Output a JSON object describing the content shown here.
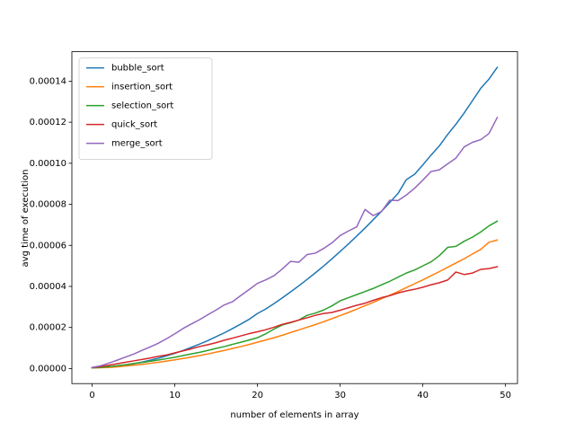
{
  "chart_data": {
    "type": "line",
    "xlabel": "number of elements in array",
    "ylabel": "avg time of execution",
    "x": [
      0,
      1,
      2,
      3,
      4,
      5,
      6,
      7,
      8,
      9,
      10,
      11,
      12,
      13,
      14,
      15,
      16,
      17,
      18,
      19,
      20,
      21,
      22,
      23,
      24,
      25,
      26,
      27,
      28,
      29,
      30,
      31,
      32,
      33,
      34,
      35,
      36,
      37,
      38,
      39,
      40,
      41,
      42,
      43,
      44,
      45,
      46,
      47,
      48,
      49
    ],
    "xlim": [
      -2.45,
      51.45
    ],
    "xticks": [
      0,
      10,
      20,
      30,
      40,
      50
    ],
    "ylim": [
      -7.35e-06,
      0.00015435
    ],
    "yticks": [
      {
        "value": 0,
        "label": "0.00000"
      },
      {
        "value": 2e-05,
        "label": "0.00002"
      },
      {
        "value": 4e-05,
        "label": "0.00004"
      },
      {
        "value": 6e-05,
        "label": "0.00006"
      },
      {
        "value": 8e-05,
        "label": "0.00008"
      },
      {
        "value": 0.0001,
        "label": "0.00010"
      },
      {
        "value": 0.00012,
        "label": "0.00012"
      },
      {
        "value": 0.00014,
        "label": "0.00014"
      }
    ],
    "grid": false,
    "legend": "upper left",
    "series": [
      {
        "name": "bubble_sort",
        "color": "#1f77b4",
        "values": [
          5e-07,
          6e-07,
          9e-07,
          1e-06,
          1.6e-06,
          2.3e-06,
          3.1e-06,
          4e-06,
          5e-06,
          6.2e-06,
          7.4e-06,
          8.8e-06,
          1.03e-05,
          1.19e-05,
          1.36e-05,
          1.55e-05,
          1.74e-05,
          1.95e-05,
          2.17e-05,
          2.4e-05,
          2.68e-05,
          2.9e-05,
          3.16e-05,
          3.44e-05,
          3.73e-05,
          4.03e-05,
          4.34e-05,
          4.66e-05,
          4.99e-05,
          5.34e-05,
          5.7e-05,
          6.07e-05,
          6.45e-05,
          6.84e-05,
          7.25e-05,
          7.66e-05,
          8.09e-05,
          8.53e-05,
          9.2e-05,
          9.46e-05,
          9.92e-05,
          0.000104,
          0.0001085,
          0.000114,
          0.000119,
          0.0001245,
          0.0001305,
          0.0001365,
          0.000141,
          0.0001467
        ]
      },
      {
        "name": "insertion_sort",
        "color": "#ff7f0e",
        "values": [
          3e-07,
          4e-07,
          5e-07,
          8e-07,
          1.2e-06,
          1.6e-06,
          2e-06,
          2.5e-06,
          3e-06,
          3.6e-06,
          4.2e-06,
          4.9e-06,
          5.6e-06,
          6.3e-06,
          7.1e-06,
          8e-06,
          8.8e-06,
          9.8e-06,
          1.07e-05,
          1.17e-05,
          1.28e-05,
          1.39e-05,
          1.5e-05,
          1.62e-05,
          1.75e-05,
          1.88e-05,
          2.01e-05,
          2.14e-05,
          2.28e-05,
          2.43e-05,
          2.58e-05,
          2.73e-05,
          2.89e-05,
          3.06e-05,
          3.22e-05,
          3.4e-05,
          3.57e-05,
          3.75e-05,
          3.94e-05,
          4.13e-05,
          4.32e-05,
          4.52e-05,
          4.72e-05,
          4.93e-05,
          5.14e-05,
          5.35e-05,
          5.58e-05,
          5.8e-05,
          6.15e-05,
          6.26e-05
        ]
      },
      {
        "name": "selection_sort",
        "color": "#2ca02c",
        "values": [
          3e-07,
          5e-07,
          9e-07,
          1.3e-06,
          1.8e-06,
          2.4e-06,
          2.9e-06,
          3.5e-06,
          4.1e-06,
          4.8e-06,
          5.5e-06,
          6.3e-06,
          7.1e-06,
          7.9e-06,
          8.8e-06,
          9.8e-06,
          1.07e-05,
          1.18e-05,
          1.28e-05,
          1.39e-05,
          1.5e-05,
          1.69e-05,
          1.92e-05,
          2.12e-05,
          2.23e-05,
          2.36e-05,
          2.59e-05,
          2.7e-05,
          2.85e-05,
          3.05e-05,
          3.3e-05,
          3.45e-05,
          3.6e-05,
          3.75e-05,
          3.9e-05,
          4.08e-05,
          4.25e-05,
          4.45e-05,
          4.65e-05,
          4.8e-05,
          5e-05,
          5.2e-05,
          5.5e-05,
          5.9e-05,
          5.95e-05,
          6.2e-05,
          6.4e-05,
          6.65e-05,
          6.95e-05,
          7.18e-05
        ]
      },
      {
        "name": "quick_sort",
        "color": "#d62728",
        "values": [
          5e-07,
          9e-07,
          1.6e-06,
          2.3e-06,
          3e-06,
          3.7e-06,
          4.4e-06,
          5.1e-06,
          5.9e-06,
          6.6e-06,
          7.6e-06,
          8.6e-06,
          9.6e-06,
          1.07e-05,
          1.16e-05,
          1.26e-05,
          1.38e-05,
          1.48e-05,
          1.59e-05,
          1.7e-05,
          1.79e-05,
          1.89e-05,
          2.01e-05,
          2.15e-05,
          2.25e-05,
          2.36e-05,
          2.47e-05,
          2.59e-05,
          2.68e-05,
          2.73e-05,
          2.84e-05,
          2.96e-05,
          3.08e-05,
          3.18e-05,
          3.32e-05,
          3.45e-05,
          3.55e-05,
          3.68e-05,
          3.78e-05,
          3.86e-05,
          3.96e-05,
          4.08e-05,
          4.18e-05,
          4.31e-05,
          4.7e-05,
          4.58e-05,
          4.65e-05,
          4.83e-05,
          4.87e-05,
          4.96e-05
        ]
      },
      {
        "name": "merge_sort",
        "color": "#9467bd",
        "values": [
          5e-07,
          1.3e-06,
          2.6e-06,
          4e-06,
          5.5e-06,
          7e-06,
          8.8e-06,
          1.05e-05,
          1.23e-05,
          1.45e-05,
          1.69e-05,
          1.95e-05,
          2.17e-05,
          2.38e-05,
          2.62e-05,
          2.85e-05,
          3.1e-05,
          3.26e-05,
          3.56e-05,
          3.85e-05,
          4.15e-05,
          4.32e-05,
          4.52e-05,
          4.85e-05,
          5.22e-05,
          5.18e-05,
          5.55e-05,
          5.62e-05,
          5.85e-05,
          6.12e-05,
          6.48e-05,
          6.7e-05,
          6.9e-05,
          7.75e-05,
          7.45e-05,
          7.65e-05,
          8.2e-05,
          8.18e-05,
          8.45e-05,
          8.78e-05,
          9.18e-05,
          9.6e-05,
          9.68e-05,
          9.97e-05,
          0.0001025,
          0.000108,
          0.0001102,
          0.0001115,
          0.0001145,
          0.0001223
        ]
      }
    ]
  }
}
